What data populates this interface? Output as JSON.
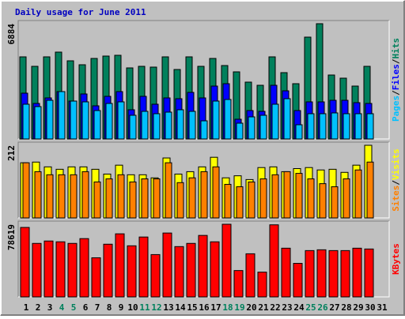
{
  "chart_data": [
    {
      "type": "bar",
      "title": "Daily usage for June 2011",
      "title_color": "#0000c0",
      "ylim": [
        0,
        6884
      ],
      "yticks": [
        6884
      ],
      "legend_separator": "/",
      "series": [
        {
          "name": "Hits",
          "color": "#00805c",
          "values": [
            4904,
            4338,
            4904,
            5187,
            4668,
            4432,
            4809,
            4951,
            4998,
            4244,
            4338,
            4291,
            4904,
            4149,
            4904,
            4338,
            4809,
            4385,
            4008,
            3395,
            3206,
            4904,
            3961,
            3301,
            6082,
            6884,
            3819,
            3631,
            3159,
            4338,
            0
          ]
        },
        {
          "name": "Files",
          "color": "#0000ff",
          "values": [
            2735,
            2122,
            2452,
            2829,
            2263,
            2688,
            1980,
            2546,
            2829,
            1745,
            2546,
            2075,
            2452,
            2405,
            2782,
            2452,
            3159,
            3301,
            1179,
            1697,
            1650,
            3206,
            2876,
            1697,
            2216,
            2216,
            2310,
            2310,
            2169,
            2122,
            0
          ]
        },
        {
          "name": "Pages",
          "color": "#00c0ff",
          "values": [
            2075,
            1933,
            2310,
            2829,
            2263,
            2216,
            1697,
            2122,
            2216,
            1415,
            1650,
            1509,
            1603,
            1745,
            1650,
            1084,
            2263,
            2358,
            943,
            1320,
            1415,
            2075,
            2405,
            849,
            1509,
            1509,
            1556,
            1509,
            1509,
            1509,
            0
          ]
        }
      ]
    },
    {
      "type": "bar",
      "ylim": [
        0,
        212
      ],
      "yticks": [
        212
      ],
      "legend_separator": "/",
      "series": [
        {
          "name": "Visits",
          "color": "#ffff00",
          "values": [
            161,
            163,
            149,
            142,
            149,
            149,
            142,
            128,
            154,
            126,
            126,
            117,
            175,
            128,
            135,
            149,
            177,
            117,
            123,
            112,
            147,
            149,
            135,
            144,
            147,
            140,
            142,
            133,
            154,
            212,
            0
          ]
        },
        {
          "name": "Sites",
          "color": "#ff8000",
          "values": [
            161,
            135,
            126,
            126,
            126,
            135,
            105,
            114,
            126,
            105,
            114,
            114,
            161,
            103,
            117,
            135,
            149,
            98,
            91,
            105,
            114,
            126,
            135,
            130,
            114,
            100,
            91,
            114,
            140,
            163,
            0
          ]
        }
      ]
    },
    {
      "type": "bar",
      "ylim": [
        0,
        78619
      ],
      "yticks": [
        78619
      ],
      "categories": [
        "1",
        "2",
        "3",
        "4",
        "5",
        "6",
        "7",
        "8",
        "9",
        "10",
        "11",
        "12",
        "13",
        "14",
        "15",
        "16",
        "17",
        "18",
        "19",
        "20",
        "21",
        "22",
        "23",
        "24",
        "25",
        "26",
        "27",
        "28",
        "29",
        "30",
        "31"
      ],
      "x_label_colors": [
        "#000000",
        "#000000",
        "#000000",
        "#00805c",
        "#00805c",
        "#000000",
        "#000000",
        "#000000",
        "#000000",
        "#000000",
        "#00805c",
        "#00805c",
        "#000000",
        "#000000",
        "#000000",
        "#000000",
        "#000000",
        "#00805c",
        "#00805c",
        "#000000",
        "#000000",
        "#000000",
        "#000000",
        "#000000",
        "#00805c",
        "#00805c",
        "#000000",
        "#000000",
        "#000000",
        "#000000",
        "#000000"
      ],
      "series": [
        {
          "name": "KBytes",
          "color": "#ff0000",
          "values": [
            75168,
            57888,
            60480,
            59616,
            57888,
            63072,
            42336,
            57024,
            68256,
            55296,
            64800,
            45792,
            69120,
            54432,
            57888,
            66528,
            59616,
            78619,
            28512,
            46656,
            26784,
            78000,
            52704,
            36288,
            50112,
            50976,
            50112,
            50112,
            52704,
            51840,
            0
          ]
        }
      ]
    }
  ]
}
